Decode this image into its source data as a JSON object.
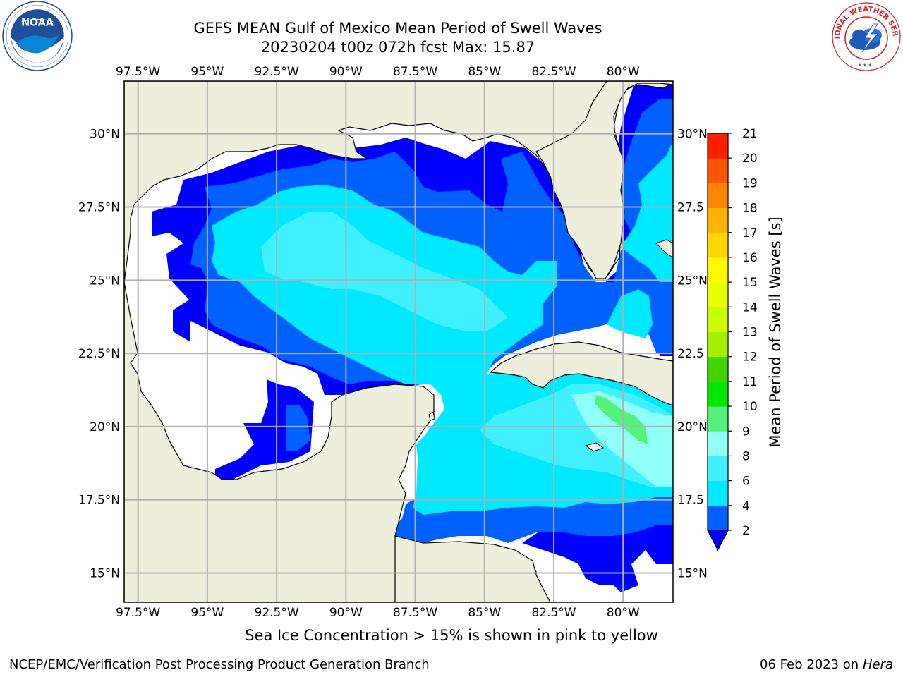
{
  "header": {
    "title_line1": "GEFS MEAN Gulf of Mexico Mean Period of Swell Waves",
    "title_line2": "20230204 t00z 072h fcst   Max: 15.87"
  },
  "logos": {
    "left": {
      "name": "NOAA",
      "ring_text": "NATIONAL OCEANIC AND ATMOSPHERIC ADMINISTRATION · U.S. DEPARTMENT OF COMMERCE"
    },
    "right": {
      "name": "NATIONAL WEATHER SERVICE"
    }
  },
  "map": {
    "lon_labels": [
      "97.5°W",
      "95°W",
      "92.5°W",
      "90°W",
      "87.5°W",
      "85°W",
      "82.5°W",
      "80°W"
    ],
    "lon_values": [
      -97.5,
      -95,
      -92.5,
      -90,
      -87.5,
      -85,
      -82.5,
      -80
    ],
    "lat_labels_left": [
      "30°N",
      "27.5°N",
      "25°N",
      "22.5°N",
      "20°N",
      "17.5°N",
      "15°N"
    ],
    "lat_labels_right": [
      "30°N",
      "27.5",
      "25°N",
      "22.5",
      "20°N",
      "17.5",
      "15°N"
    ],
    "lat_values": [
      30,
      27.5,
      25,
      22.5,
      20,
      17.5,
      15
    ],
    "extent": {
      "lon_min": -98,
      "lon_max": -78.2,
      "lat_min": 14,
      "lat_max": 31.8
    },
    "land_color": "#eeeedd",
    "grid_color": "#b0b0b0"
  },
  "colorbar": {
    "label": "Mean Period of Swell Waves [s]",
    "ticks": [
      "2",
      "4",
      "6",
      "8",
      "9",
      "10",
      "11",
      "12",
      "13",
      "14",
      "15",
      "16",
      "17",
      "18",
      "19",
      "20",
      "21"
    ],
    "colors": [
      "#0061ff",
      "#00e9ff",
      "#40f0ff",
      "#90fff7",
      "#54f27d",
      "#00e600",
      "#3fd500",
      "#a4ef00",
      "#caff00",
      "#e9ff00",
      "#fff900",
      "#ffd500",
      "#ffb300",
      "#ff8600",
      "#ff5500",
      "#ff1e00"
    ],
    "extend_color": "#0000ff"
  },
  "caption": "Sea Ice Concentration > 15% is shown in pink to yellow",
  "footer": {
    "left": "NCEP/EMC/Verification Post Processing Product Generation Branch",
    "right_date": "06 Feb 2023 on",
    "right_host": "Hera"
  }
}
